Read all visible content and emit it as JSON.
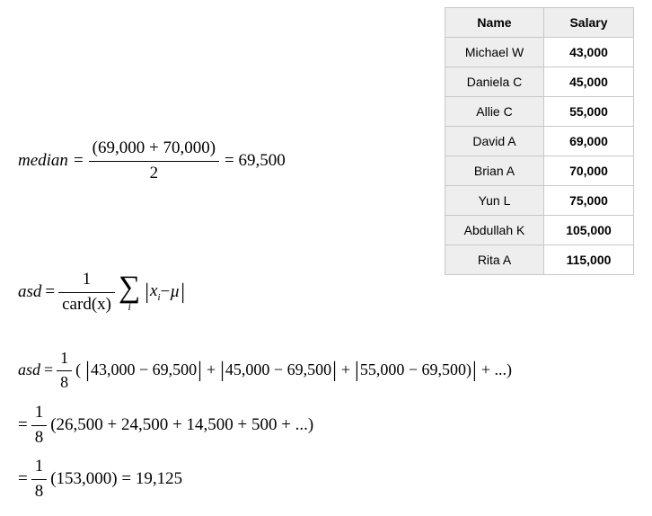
{
  "table": {
    "headers": {
      "name": "Name",
      "salary": "Salary"
    },
    "rows": [
      {
        "name": "Michael W",
        "salary": "43,000"
      },
      {
        "name": "Daniela C",
        "salary": "45,000"
      },
      {
        "name": "Allie C",
        "salary": "55,000"
      },
      {
        "name": "David A",
        "salary": "69,000"
      },
      {
        "name": "Brian A",
        "salary": "70,000"
      },
      {
        "name": "Yun L",
        "salary": "75,000"
      },
      {
        "name": "Abdullah K",
        "salary": "105,000"
      },
      {
        "name": "Rita A",
        "salary": "115,000"
      }
    ],
    "header_bg": "#eeeeee",
    "cell_border": "#c8c8c8"
  },
  "eq1": {
    "lhs": "median",
    "eq": "=",
    "num": "(69,000 + 70,000)",
    "den": "2",
    "rhs": "= 69,500"
  },
  "eq2": {
    "lhs": "asd",
    "eq": "=",
    "frac_num": "1",
    "frac_den_fn": "card",
    "frac_den_arg": "(x)",
    "sigma_sub": "i",
    "abs_inner_left": "x",
    "abs_inner_sub": "i",
    "abs_minus": " − ",
    "abs_inner_right": "µ"
  },
  "eq3": {
    "lhs": "asd",
    "eq": "=",
    "frac_num": "1",
    "frac_den": "8",
    "open": "(",
    "t1": "43,000 − 69,500",
    "plus": "+",
    "t2": "45,000 − 69,500",
    "t3": "55,000 − 69,500)",
    "tail": "+ ...)"
  },
  "eq4": {
    "eq": "=",
    "frac_num": "1",
    "frac_den": "8",
    "body": "(26,500 + 24,500 + 14,500 + 500 + ...)"
  },
  "eq5": {
    "eq": "=",
    "frac_num": "1",
    "frac_den": "8",
    "body": "(153,000) = 19,125"
  }
}
